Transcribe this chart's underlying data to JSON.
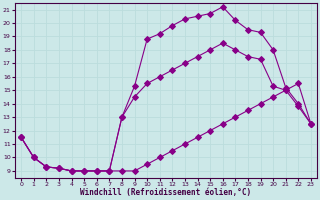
{
  "xlabel": "Windchill (Refroidissement éolien,°C)",
  "background_color": "#cce8e8",
  "grid_color": "#aacccc",
  "line_color": "#880088",
  "xlim": [
    -0.5,
    23.5
  ],
  "ylim": [
    8.5,
    21.5
  ],
  "xticks": [
    0,
    1,
    2,
    3,
    4,
    5,
    6,
    7,
    8,
    9,
    10,
    11,
    12,
    13,
    14,
    15,
    16,
    17,
    18,
    19,
    20,
    21,
    22,
    23
  ],
  "yticks": [
    9,
    10,
    11,
    12,
    13,
    14,
    15,
    16,
    17,
    18,
    19,
    20,
    21
  ],
  "curve1_x": [
    0,
    1,
    2,
    3,
    4,
    5,
    6,
    7,
    8,
    9,
    10,
    11,
    12,
    13,
    14,
    15,
    16,
    17,
    18,
    19,
    20,
    21,
    22,
    23
  ],
  "curve1_y": [
    11.5,
    10.0,
    9.3,
    9.2,
    9.0,
    9.0,
    9.0,
    9.0,
    9.0,
    9.0,
    9.5,
    10.0,
    10.5,
    11.0,
    11.5,
    12.0,
    12.5,
    13.0,
    13.5,
    14.0,
    14.5,
    15.0,
    15.5,
    12.5
  ],
  "curve2_x": [
    0,
    1,
    2,
    3,
    4,
    5,
    6,
    7,
    8,
    9,
    10,
    11,
    12,
    13,
    14,
    15,
    16,
    17,
    18,
    19,
    20,
    21,
    22,
    23
  ],
  "curve2_y": [
    11.5,
    10.0,
    9.3,
    9.2,
    9.0,
    9.0,
    9.0,
    9.0,
    13.0,
    15.3,
    18.8,
    19.2,
    19.8,
    20.3,
    20.5,
    20.7,
    21.2,
    20.2,
    19.5,
    19.3,
    18.0,
    15.2,
    14.0,
    12.5
  ],
  "curve3_x": [
    0,
    1,
    2,
    3,
    4,
    5,
    6,
    7,
    8,
    9,
    10,
    11,
    12,
    13,
    14,
    15,
    16,
    17,
    18,
    19,
    20,
    21,
    22,
    23
  ],
  "curve3_y": [
    11.5,
    10.0,
    9.3,
    9.2,
    9.0,
    9.0,
    9.0,
    9.0,
    13.0,
    14.5,
    15.5,
    16.0,
    16.5,
    17.0,
    17.5,
    18.0,
    18.5,
    18.0,
    17.5,
    17.3,
    15.3,
    15.0,
    13.8,
    12.5
  ]
}
